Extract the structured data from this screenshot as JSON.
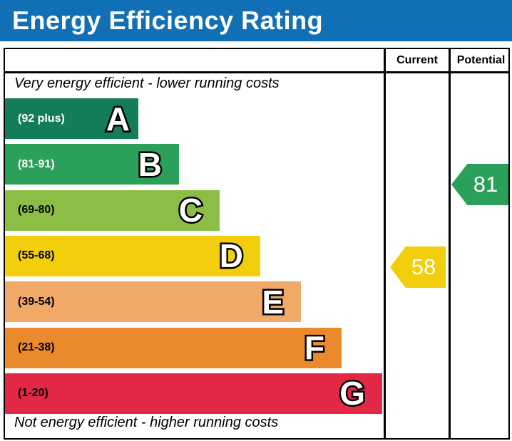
{
  "banner": {
    "title": "Energy Efficiency Rating",
    "bg_color": "#106fb5"
  },
  "header": {
    "current_label": "Current",
    "potential_label": "Potential"
  },
  "notes": {
    "top": "Very energy efficient - lower running costs",
    "bottom": "Not energy efficient - higher running costs"
  },
  "chart_data": {
    "type": "bar",
    "title": "Energy Efficiency Rating",
    "categories": [
      "A",
      "B",
      "C",
      "D",
      "E",
      "F",
      "G"
    ],
    "bands": [
      {
        "letter": "A",
        "range_label": "(92 plus)",
        "range_min": 92,
        "range_max": 100,
        "color": "#137c59",
        "range_text_color": "#ffffff"
      },
      {
        "letter": "B",
        "range_label": "(81-91)",
        "range_min": 81,
        "range_max": 91,
        "color": "#2ba05a",
        "range_text_color": "#ffffff"
      },
      {
        "letter": "C",
        "range_label": "(69-80)",
        "range_min": 69,
        "range_max": 80,
        "color": "#8cbd44",
        "range_text_color": "#000000"
      },
      {
        "letter": "D",
        "range_label": "(55-68)",
        "range_min": 55,
        "range_max": 68,
        "color": "#f3ce0c",
        "range_text_color": "#000000"
      },
      {
        "letter": "E",
        "range_label": "(39-54)",
        "range_min": 39,
        "range_max": 54,
        "color": "#f1a968",
        "range_text_color": "#000000"
      },
      {
        "letter": "F",
        "range_label": "(21-38)",
        "range_min": 21,
        "range_max": 38,
        "color": "#eb8a2d",
        "range_text_color": "#000000"
      },
      {
        "letter": "G",
        "range_label": "(1-20)",
        "range_min": 1,
        "range_max": 20,
        "color": "#e32845",
        "range_text_color": "#000000"
      }
    ],
    "current": {
      "value": 58,
      "band": "D",
      "color": "#f3ce0c",
      "text_color": "#ffffff"
    },
    "potential": {
      "value": 81,
      "band": "B",
      "color": "#2ba05a",
      "text_color": "#ffffff"
    }
  }
}
